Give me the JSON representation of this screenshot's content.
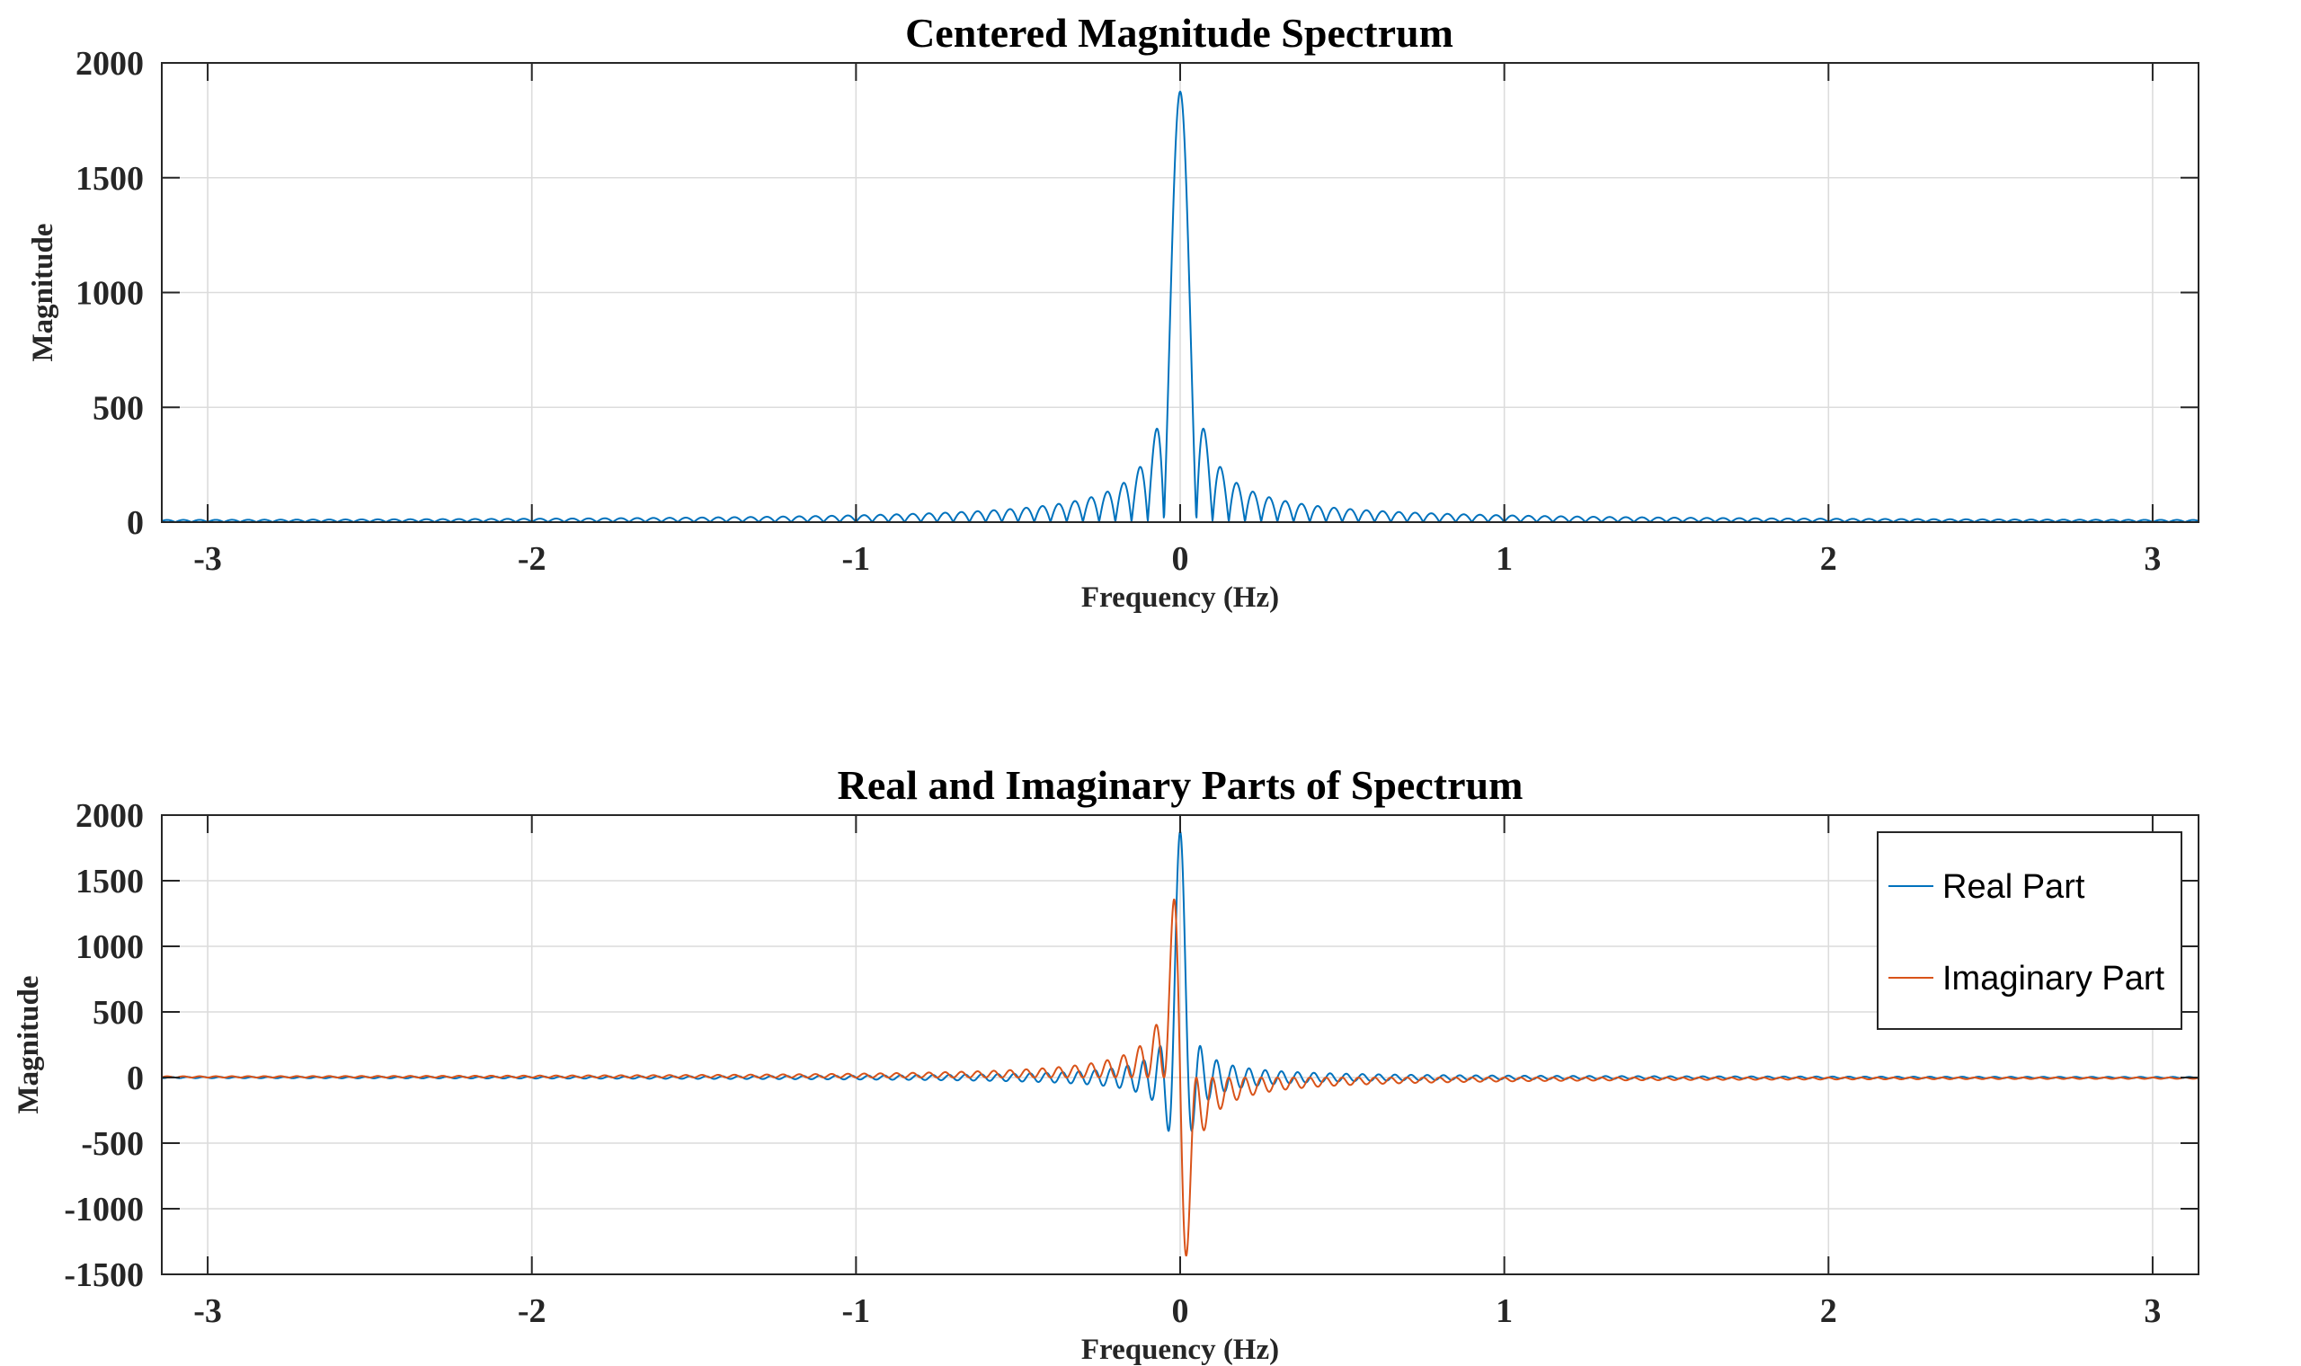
{
  "chart_data": [
    {
      "type": "line",
      "title": "Centered Magnitude Spectrum",
      "xlabel": "Frequency (Hz)",
      "ylabel": "Magnitude",
      "xlim": [
        -3.1416,
        3.1416
      ],
      "ylim": [
        0,
        2000
      ],
      "xticks": [
        -3,
        -2,
        -1,
        0,
        1,
        2,
        3
      ],
      "yticks": [
        0,
        500,
        1000,
        1500,
        2000
      ],
      "xtick_labels": [
        "-3",
        "-2",
        "-1",
        "0",
        "1",
        "2",
        "3"
      ],
      "ytick_labels": [
        "0",
        "500",
        "1000",
        "1500",
        "2000"
      ],
      "grid": true,
      "series": [
        {
          "kind": "magnitude",
          "color": "#0072BD",
          "peak": 1875,
          "first_sidelobe": 390,
          "lobe_spacing_hz": 0.05
        }
      ]
    },
    {
      "type": "line",
      "title": "Real and Imaginary Parts of Spectrum",
      "xlabel": "Frequency (Hz)",
      "ylabel": "Magnitude",
      "xlim": [
        -3.1416,
        3.1416
      ],
      "ylim": [
        -1500,
        2000
      ],
      "xticks": [
        -3,
        -2,
        -1,
        0,
        1,
        2,
        3
      ],
      "yticks": [
        -1500,
        -1000,
        -500,
        0,
        500,
        1000,
        1500,
        2000
      ],
      "xtick_labels": [
        "-3",
        "-2",
        "-1",
        "0",
        "1",
        "2",
        "3"
      ],
      "ytick_labels": [
        "-1500",
        "-1000",
        "-500",
        "0",
        "500",
        "1000",
        "1500",
        "2000"
      ],
      "grid": true,
      "legend": "top-right",
      "series": [
        {
          "name": "Real Part",
          "kind": "real",
          "color": "#0072BD",
          "peak": 1875,
          "first_sidelobe": -390
        },
        {
          "name": "Imaginary Part",
          "kind": "imag",
          "color": "#D95319",
          "max": 1200,
          "min": -1200
        }
      ]
    }
  ]
}
